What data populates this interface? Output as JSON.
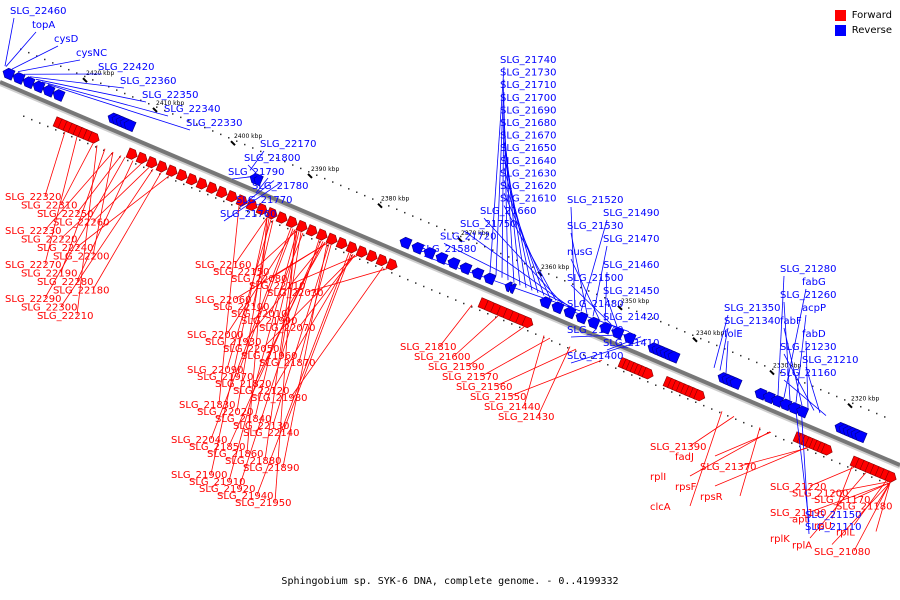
{
  "legend": {
    "forward_label": "Forward",
    "reverse_label": "Reverse",
    "forward_color": "#ff0000",
    "reverse_color": "#0000ff"
  },
  "caption": "Sphingobium sp. SYK-6 DNA, complete genome. - 0..4199332",
  "ruler_ticks": [
    "2420 kbp",
    "2410 kbp",
    "2400 kbp",
    "2390 kbp",
    "2380 kbp",
    "2370 kbp",
    "2360 kbp",
    "2350 kbp",
    "2340 kbp",
    "2330 kbp",
    "2320 kbp"
  ],
  "reverse_labels": [
    "SLG_22460",
    "topA",
    "cysD",
    "cysNC",
    "SLG_22420",
    "SLG_22360",
    "SLG_22350",
    "SLG_22340",
    "SLG_22330",
    "SLG_22170",
    "SLG_21800",
    "SLG_21790",
    "SLG_21780",
    "SLG_21770",
    "SLG_21760",
    "SLG_21740",
    "SLG_21730",
    "SLG_21710",
    "SLG_21700",
    "SLG_21690",
    "SLG_21680",
    "SLG_21670",
    "SLG_21650",
    "SLG_21640",
    "SLG_21630",
    "SLG_21620",
    "SLG_21610",
    "SLG_21660",
    "SLG_21750",
    "SLG_21720",
    "SLG_21580",
    "SLG_21520",
    "SLG_21490",
    "SLG_21530",
    "SLG_21470",
    "nusG",
    "SLG_21460",
    "SLG_21500",
    "SLG_21450",
    "SLG_21480",
    "SLG_21420",
    "SLG_21540",
    "SLG_21410",
    "SLG_21400",
    "SLG_21350",
    "SLG_21340",
    "folE",
    "SLG_21280",
    "fabG",
    "SLG_21260",
    "acpP",
    "fabF",
    "fabD",
    "SLG_21230",
    "SLG_21210",
    "SLG_21160",
    "SLG_21150",
    "SLG_21110"
  ],
  "forward_labels": [
    "SLG_22320",
    "SLG_22310",
    "SLG_22250",
    "SLG_22260",
    "SLG_22230",
    "SLG_22220",
    "SLG_22240",
    "SLG_22200",
    "SLG_22270",
    "SLG_22190",
    "SLG_22280",
    "SLG_22180",
    "SLG_22290",
    "SLG_22300",
    "SLG_22210",
    "SLG_22160",
    "SLG_22150",
    "SLG_22080",
    "SLG_22110",
    "SLG_22030",
    "SLG_22060",
    "SLG_22100",
    "SLG_22010",
    "SLG_21990",
    "SLG_22070",
    "SLG_22000",
    "SLG_21930",
    "SLG_22050",
    "SLG_21960",
    "SLG_21870",
    "SLG_22090",
    "SLG_21970",
    "SLG_21820",
    "SLG_22120",
    "SLG_21980",
    "SLG_21830",
    "SLG_22020",
    "SLG_21840",
    "SLG_22130",
    "SLG_22140",
    "SLG_22040",
    "SLG_21850",
    "SLG_21860",
    "SLG_21880",
    "SLG_21890",
    "SLG_21900",
    "SLG_21910",
    "SLG_21920",
    "SLG_21940",
    "SLG_21950",
    "SLG_21810",
    "SLG_21600",
    "SLG_21590",
    "SLG_21570",
    "SLG_21560",
    "SLG_21550",
    "SLG_21440",
    "SLG_21430",
    "SLG_21390",
    "fadJ",
    "SLG_21370",
    "rplI",
    "rpsF",
    "rpsR",
    "clcA",
    "SLG_21220",
    "SLG_21200",
    "SLG_21170",
    "SLG_21180",
    "SLG_21190",
    "apt",
    "rpU",
    "rplL",
    "rplK",
    "rplA",
    "SLG_21080"
  ]
}
